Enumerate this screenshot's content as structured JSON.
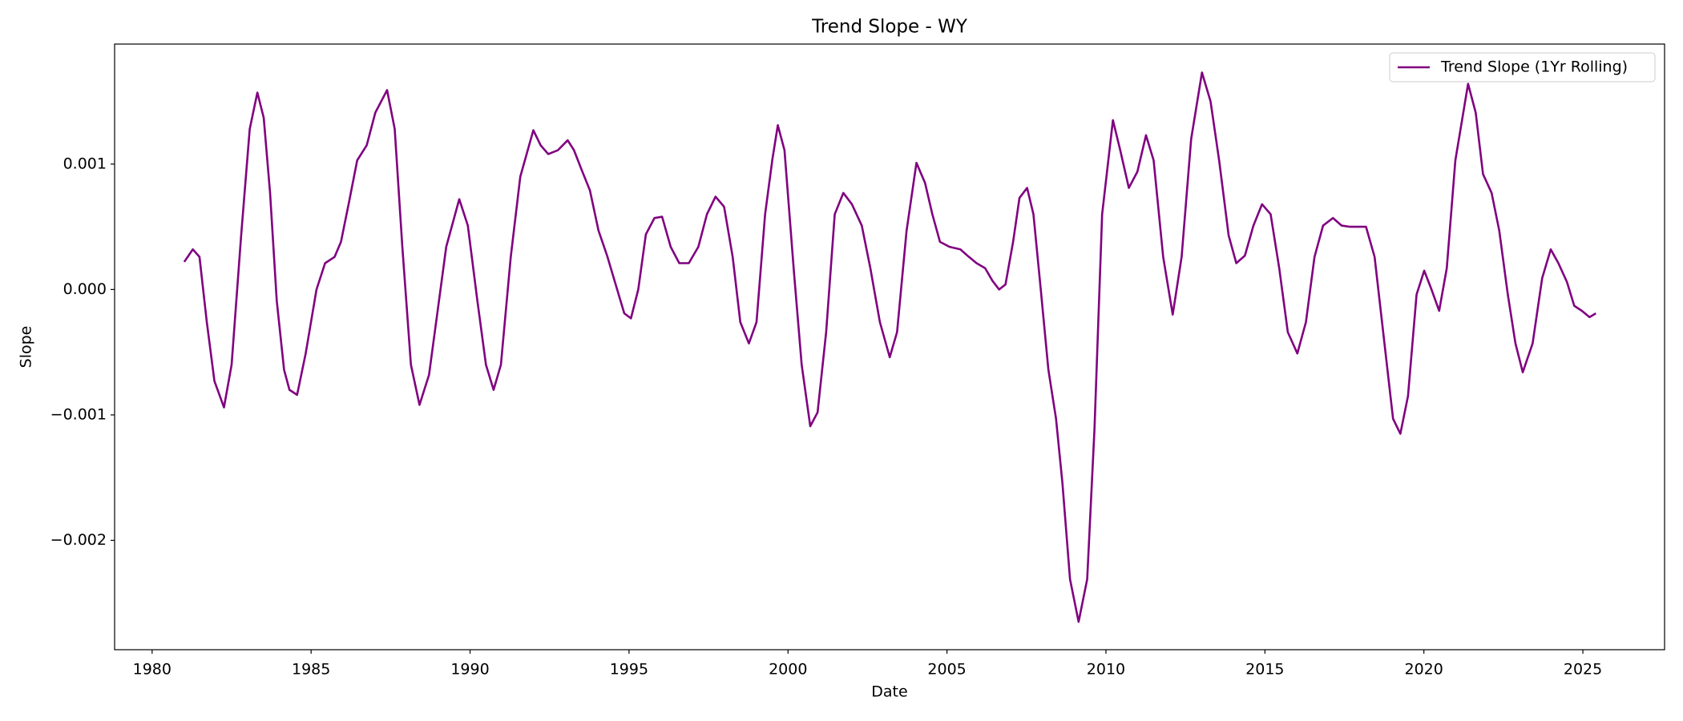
{
  "chart_data": {
    "type": "line",
    "title": "Trend Slope - WY",
    "x_label": "Date",
    "y_label": "Slope",
    "x": [
      1981.01,
      1981.28,
      1981.49,
      1981.72,
      1981.96,
      1982.26,
      1982.5,
      1982.8,
      1983.07,
      1983.31,
      1983.51,
      1983.71,
      1983.92,
      1984.15,
      1984.32,
      1984.56,
      1984.83,
      1985.17,
      1985.44,
      1985.74,
      1985.94,
      1986.18,
      1986.45,
      1986.75,
      1987.02,
      1987.39,
      1987.63,
      1987.87,
      1988.14,
      1988.41,
      1988.71,
      1988.98,
      1989.25,
      1989.66,
      1989.93,
      1990.23,
      1990.5,
      1990.74,
      1990.97,
      1991.28,
      1991.58,
      1991.99,
      1992.22,
      1992.46,
      1992.76,
      1993.07,
      1993.27,
      1993.5,
      1993.77,
      1994.04,
      1994.31,
      1994.58,
      1994.85,
      1995.06,
      1995.29,
      1995.53,
      1995.8,
      1996.04,
      1996.31,
      1996.58,
      1996.88,
      1997.18,
      1997.45,
      1997.72,
      1997.99,
      1998.26,
      1998.5,
      1998.77,
      1999.01,
      1999.28,
      1999.51,
      1999.68,
      1999.89,
      2000.19,
      2000.43,
      2000.7,
      2000.93,
      2001.2,
      2001.47,
      2001.74,
      2002.01,
      2002.32,
      2002.59,
      2002.89,
      2003.2,
      2003.43,
      2003.73,
      2004.04,
      2004.31,
      2004.54,
      2004.78,
      2005.08,
      2005.42,
      2005.69,
      2005.93,
      2006.2,
      2006.43,
      2006.64,
      2006.84,
      2007.08,
      2007.28,
      2007.52,
      2007.72,
      2007.95,
      2008.19,
      2008.43,
      2008.63,
      2008.87,
      2009.14,
      2009.41,
      2009.64,
      2009.88,
      2010.22,
      2010.45,
      2010.72,
      2010.99,
      2011.26,
      2011.5,
      2011.8,
      2012.1,
      2012.38,
      2012.68,
      2013.02,
      2013.29,
      2013.56,
      2013.86,
      2014.1,
      2014.37,
      2014.64,
      2014.91,
      2015.18,
      2015.45,
      2015.72,
      2016.02,
      2016.29,
      2016.56,
      2016.83,
      2017.14,
      2017.41,
      2017.68,
      2017.95,
      2018.18,
      2018.45,
      2018.76,
      2019.03,
      2019.26,
      2019.5,
      2019.77,
      2020.01,
      2020.24,
      2020.48,
      2020.72,
      2020.99,
      2021.39,
      2021.63,
      2021.86,
      2022.13,
      2022.37,
      2022.64,
      2022.88,
      2023.11,
      2023.42,
      2023.72,
      2023.99,
      2024.23,
      2024.5,
      2024.73,
      2024.97,
      2025.21,
      2025.41
    ],
    "series": [
      {
        "name": "Trend Slope (1Yr Rolling)",
        "color": "#800080",
        "values": [
          0.00022,
          0.00032,
          0.00026,
          -0.00026,
          -0.00073,
          -0.00094,
          -0.0006,
          0.00043,
          0.00128,
          0.00157,
          0.00137,
          0.00077,
          -9e-05,
          -0.00064,
          -0.0008,
          -0.00084,
          -0.00051,
          0.0,
          0.00021,
          0.00026,
          0.00038,
          0.00068,
          0.00103,
          0.00115,
          0.00141,
          0.00159,
          0.00128,
          0.00034,
          -0.0006,
          -0.00092,
          -0.00068,
          -0.00017,
          0.00034,
          0.00072,
          0.00051,
          -9e-05,
          -0.0006,
          -0.0008,
          -0.0006,
          0.00026,
          0.0009,
          0.00127,
          0.00115,
          0.00108,
          0.00111,
          0.00119,
          0.00111,
          0.00096,
          0.00079,
          0.00047,
          0.00027,
          4e-05,
          -0.00019,
          -0.00023,
          0.0,
          0.00044,
          0.00057,
          0.00058,
          0.00034,
          0.00021,
          0.00021,
          0.00034,
          0.0006,
          0.00074,
          0.00066,
          0.00026,
          -0.00026,
          -0.00043,
          -0.00026,
          0.0006,
          0.00104,
          0.00131,
          0.00111,
          0.00013,
          -0.0006,
          -0.00109,
          -0.00098,
          -0.00034,
          0.0006,
          0.00077,
          0.00068,
          0.00051,
          0.00017,
          -0.00026,
          -0.00054,
          -0.00034,
          0.00047,
          0.00101,
          0.00085,
          0.0006,
          0.00038,
          0.00034,
          0.00032,
          0.00026,
          0.00021,
          0.00017,
          7e-05,
          0.0,
          4e-05,
          0.00038,
          0.00073,
          0.00081,
          0.0006,
          0.0,
          -0.00064,
          -0.00103,
          -0.00154,
          -0.00231,
          -0.00265,
          -0.00231,
          -0.00111,
          0.0006,
          0.00135,
          0.00111,
          0.00081,
          0.00094,
          0.00123,
          0.00103,
          0.00026,
          -0.0002,
          0.00026,
          0.0012,
          0.00173,
          0.0015,
          0.00103,
          0.00043,
          0.00021,
          0.00027,
          0.00051,
          0.00068,
          0.0006,
          0.00017,
          -0.00034,
          -0.00051,
          -0.00026,
          0.00026,
          0.00051,
          0.00057,
          0.00051,
          0.0005,
          0.0005,
          0.0005,
          0.00026,
          -0.00043,
          -0.00103,
          -0.00115,
          -0.00085,
          -4e-05,
          0.00015,
          0.0,
          -0.00017,
          0.00017,
          0.00103,
          0.00164,
          0.00141,
          0.00092,
          0.00077,
          0.00047,
          -4e-05,
          -0.00043,
          -0.00066,
          -0.00043,
          9e-05,
          0.00032,
          0.00021,
          6e-05,
          -0.00013,
          -0.00017,
          -0.00022,
          -0.00019
        ]
      }
    ],
    "xlim": [
      1978.82,
      2027.57
    ],
    "xticks": [
      1980,
      1985,
      1990,
      1995,
      2000,
      2005,
      2010,
      2015,
      2020,
      2025
    ],
    "ylim": [
      -0.002872,
      0.001957
    ],
    "yticks": [
      {
        "value": -0.002,
        "label": "−0.002"
      },
      {
        "value": -0.001,
        "label": "−0.001"
      },
      {
        "value": 0,
        "label": "0.000"
      },
      0.001
    ],
    "grid": false,
    "legend": "upper right"
  }
}
